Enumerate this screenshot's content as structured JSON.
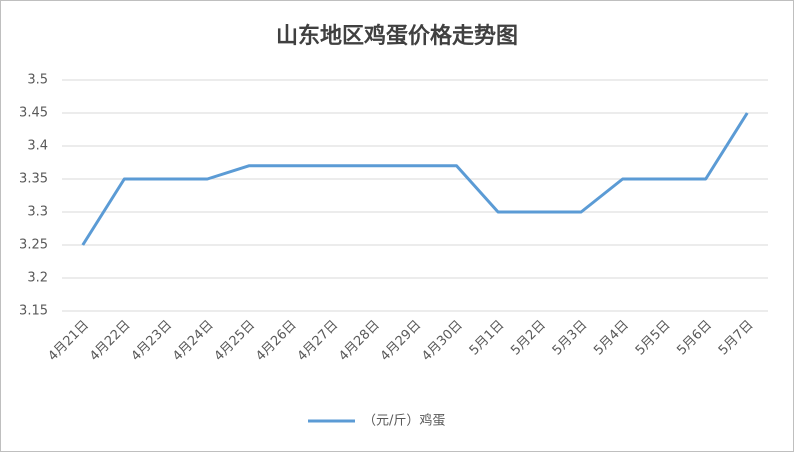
{
  "chart_data": {
    "type": "line",
    "title": "山东地区鸡蛋价格走势图",
    "categories": [
      "4月21日",
      "4月22日",
      "4月23日",
      "4月24日",
      "4月25日",
      "4月26日",
      "4月27日",
      "4月28日",
      "4月29日",
      "4月30日",
      "5月1日",
      "5月2日",
      "5月3日",
      "5月4日",
      "5月5日",
      "5月6日",
      "5月7日"
    ],
    "series": [
      {
        "name": "（元/斤）鸡蛋",
        "color": "#5b9bd5",
        "values": [
          3.25,
          3.35,
          3.35,
          3.35,
          3.37,
          3.37,
          3.37,
          3.37,
          3.37,
          3.37,
          3.3,
          3.3,
          3.3,
          3.35,
          3.35,
          3.35,
          3.45
        ]
      }
    ],
    "ylim": [
      3.15,
      3.5
    ],
    "yticks": [
      3.15,
      3.2,
      3.25,
      3.3,
      3.35,
      3.4,
      3.45,
      3.5
    ],
    "grid": true,
    "legend": "bottom"
  }
}
